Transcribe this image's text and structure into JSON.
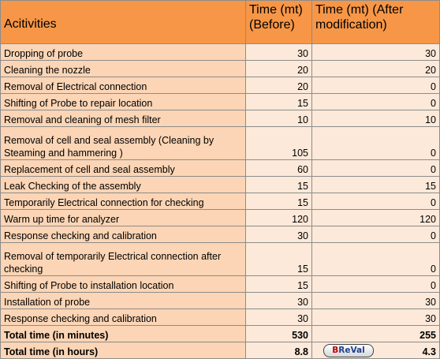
{
  "headers": {
    "activity": "Acitivities",
    "before": "Time (mt) (Before)",
    "after": "Time (mt)  (After modification)"
  },
  "rows": [
    {
      "activity": "Dropping of probe",
      "before": "30",
      "after": "30"
    },
    {
      "activity": "Cleaning the nozzle",
      "before": "20",
      "after": "20"
    },
    {
      "activity": "Removal of Electrical connection",
      "before": "20",
      "after": "0"
    },
    {
      "activity": "Shifting of Probe to repair location",
      "before": "15",
      "after": "0"
    },
    {
      "activity": "Removal and cleaning of mesh filter",
      "before": "10",
      "after": "10"
    },
    {
      "activity": "Removal of cell and seal assembly (Cleaning by Steaming and hammering )",
      "before": "105",
      "after": "0"
    },
    {
      "activity": "Replacement of cell and seal assembly",
      "before": "60",
      "after": "0"
    },
    {
      "activity": "Leak Checking of the assembly",
      "before": "15",
      "after": "15"
    },
    {
      "activity": "Temporarily Electrical connection for checking",
      "before": "15",
      "after": "0"
    },
    {
      "activity": "Warm up time for analyzer",
      "before": "120",
      "after": "120"
    },
    {
      "activity": "Response checking and calibration",
      "before": "30",
      "after": "0"
    },
    {
      "activity": "Removal of temporarily Electrical connection after checking",
      "before": "15",
      "after": "0"
    },
    {
      "activity": "Shifting of Probe to installation location",
      "before": "15",
      "after": "0"
    },
    {
      "activity": "Installation of probe",
      "before": "30",
      "after": "30"
    },
    {
      "activity": "Response checking and calibration",
      "before": "30",
      "after": "30"
    }
  ],
  "totals": {
    "minutes": {
      "label": "Total time (in minutes)",
      "before": "530",
      "after": "255"
    },
    "hours": {
      "label": "Total time (in hours)",
      "before": "8.8",
      "after": "4.3"
    }
  },
  "logo": {
    "b": "B",
    "rest": "ReVal"
  }
}
